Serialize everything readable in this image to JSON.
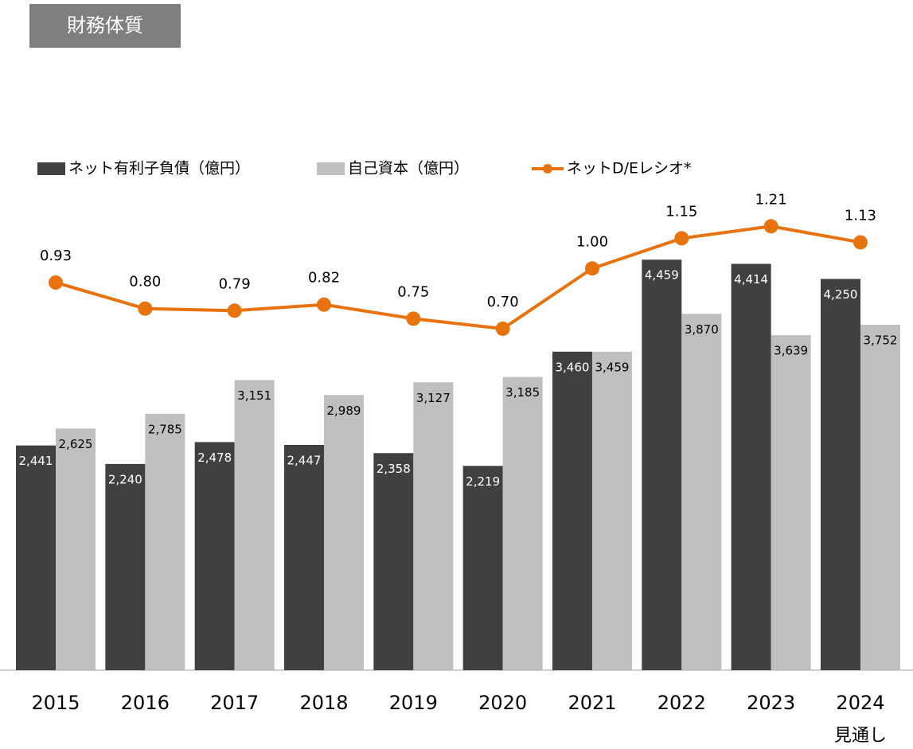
{
  "chart_data": {
    "type": "bar_line",
    "title": "財務体質",
    "categories": [
      "2015",
      "2016",
      "2017",
      "2018",
      "2019",
      "2020",
      "2021",
      "2022",
      "2023",
      "2024"
    ],
    "category_note": "見通し",
    "series": [
      {
        "name": "ネット有利子負債（億円）",
        "type": "bar",
        "color": "#404040",
        "label_color": "#ffffff",
        "values": [
          2441,
          2240,
          2478,
          2447,
          2358,
          2219,
          3460,
          4459,
          4414,
          4250
        ],
        "value_labels": [
          "2,441",
          "2,240",
          "2,478",
          "2,447",
          "2,358",
          "2,219",
          "3,460",
          "4,459",
          "4,414",
          "4,250"
        ]
      },
      {
        "name": "自己資本（億円）",
        "type": "bar",
        "color": "#bfbfbf",
        "label_color": "#000000",
        "values": [
          2625,
          2785,
          3151,
          2989,
          3127,
          3185,
          3459,
          3870,
          3639,
          3752
        ],
        "value_labels": [
          "2,625",
          "2,785",
          "3,151",
          "2,989",
          "3,127",
          "3,185",
          "3,459",
          "3,870",
          "3,639",
          "3,752"
        ]
      },
      {
        "name": "ネットD/Eレシオ*",
        "type": "line",
        "axis": "y2",
        "color": "#e8730e",
        "label_color": "#000000",
        "values": [
          0.93,
          0.8,
          0.79,
          0.82,
          0.75,
          0.7,
          1.0,
          1.15,
          1.21,
          1.13
        ],
        "value_labels": [
          "0.93",
          "0.80",
          "0.79",
          "0.82",
          "0.75",
          "0.70",
          "1.00",
          "1.15",
          "1.21",
          "1.13"
        ]
      }
    ],
    "ylim": [
      0,
      6000
    ],
    "y2lim": [
      -1,
      1.75
    ]
  }
}
